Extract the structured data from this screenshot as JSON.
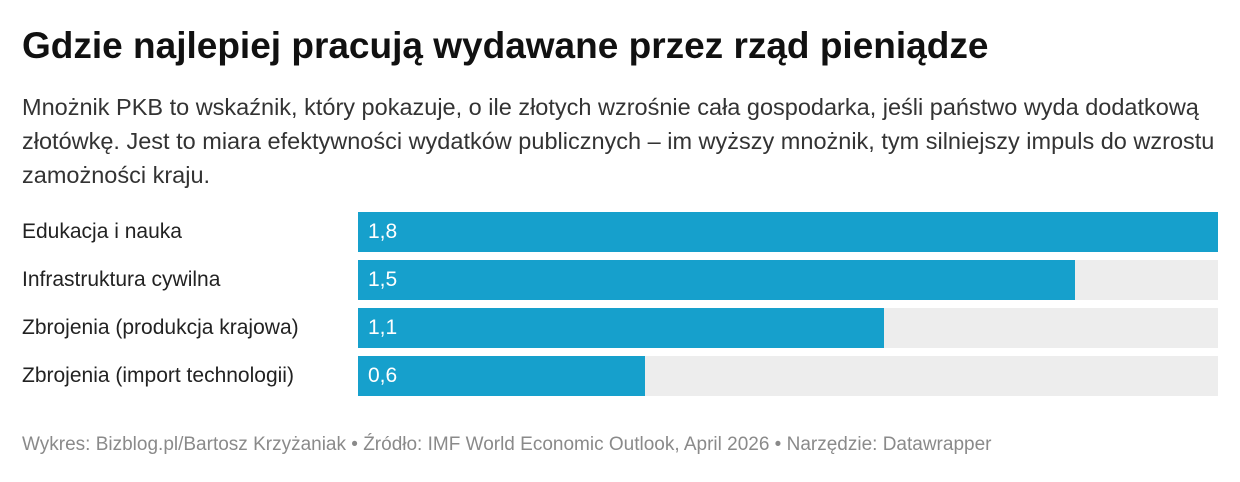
{
  "header": {
    "title": "Gdzie najlepiej pracują wydawane przez rząd pieniądze",
    "subtitle": "Mnożnik PKB to wskaźnik, który pokazuje, o ile złotych wzrośnie cała gospodarka, jeśli państwo wyda dodatkową złotówkę. Jest to miara efektywności wydatków publicznych – im wyższy mnożnik, tym silniejszy impuls do wzrostu zamożności kraju."
  },
  "chart_data": {
    "type": "bar",
    "orientation": "horizontal",
    "categories": [
      "Edukacja i nauka",
      "Infrastruktura cywilna",
      "Zbrojenia (produkcja krajowa)",
      "Zbrojenia (import technologii)"
    ],
    "values": [
      1.8,
      1.5,
      1.1,
      0.6
    ],
    "value_labels": [
      "1,8",
      "1,5",
      "1,1",
      "0,6"
    ],
    "xlim": [
      0,
      1.8
    ],
    "grid": false,
    "legend": "none",
    "colors": {
      "bar": "#16a0cc",
      "track": "#ededed"
    }
  },
  "footer": {
    "credit": "Wykres: Bizblog.pl/Bartosz Krzyżaniak • Źródło: IMF World Economic Outlook, April 2026 • Narzędzie: Datawrapper"
  }
}
